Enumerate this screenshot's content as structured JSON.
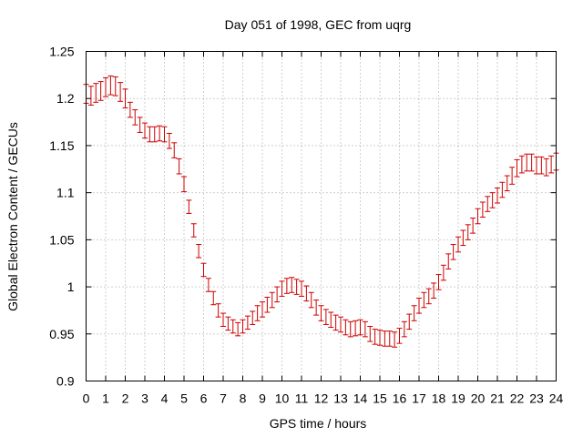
{
  "chart_data": {
    "type": "scatter",
    "title": "Day 051 of 1998, GEC from uqrg",
    "xlabel": "GPS time / hours",
    "ylabel": "Global Electron Content / GECUs",
    "xlim": [
      0,
      24
    ],
    "ylim": [
      0.9,
      1.25
    ],
    "x_ticks": [
      0,
      1,
      2,
      3,
      4,
      5,
      6,
      7,
      8,
      9,
      10,
      11,
      12,
      13,
      14,
      15,
      16,
      17,
      18,
      19,
      20,
      21,
      22,
      23,
      24
    ],
    "x_tick_labels": [
      "0",
      "1",
      "2",
      "3",
      "4",
      "5",
      "6",
      "7",
      "8",
      "9",
      "10",
      "11",
      "12",
      "13",
      "14",
      "15",
      "16",
      "17",
      "18",
      "19",
      "20",
      "21",
      "22",
      "23",
      "24"
    ],
    "y_ticks": [
      0.9,
      0.95,
      1.0,
      1.05,
      1.1,
      1.15,
      1.2,
      1.25
    ],
    "y_tick_labels": [
      "0.9",
      "0.95",
      "1",
      "1.05",
      "1.1",
      "1.15",
      "1.2",
      "1.25"
    ],
    "grid": true,
    "series": [
      {
        "name": "GEC",
        "color": "#cc0000",
        "marker": "errorbar",
        "x": [
          0,
          0.25,
          0.5,
          0.75,
          1,
          1.25,
          1.5,
          1.75,
          2,
          2.25,
          2.5,
          2.75,
          3,
          3.25,
          3.5,
          3.75,
          4,
          4.25,
          4.5,
          4.75,
          5,
          5.25,
          5.5,
          5.75,
          6,
          6.25,
          6.5,
          6.75,
          7,
          7.25,
          7.5,
          7.75,
          8,
          8.25,
          8.5,
          8.75,
          9,
          9.25,
          9.5,
          9.75,
          10,
          10.25,
          10.5,
          10.75,
          11,
          11.25,
          11.5,
          11.75,
          12,
          12.25,
          12.5,
          12.75,
          13,
          13.25,
          13.5,
          13.75,
          14,
          14.25,
          14.5,
          14.75,
          15,
          15.25,
          15.5,
          15.75,
          16,
          16.25,
          16.5,
          16.75,
          17,
          17.25,
          17.5,
          17.75,
          18,
          18.25,
          18.5,
          18.75,
          19,
          19.25,
          19.5,
          19.75,
          20,
          20.25,
          20.5,
          20.75,
          21,
          21.25,
          21.5,
          21.75,
          22,
          22.25,
          22.5,
          22.75,
          23,
          23.25,
          23.5,
          23.75,
          24
        ],
        "y": [
          1.205,
          1.203,
          1.206,
          1.208,
          1.212,
          1.214,
          1.213,
          1.207,
          1.2,
          1.188,
          1.18,
          1.172,
          1.166,
          1.162,
          1.162,
          1.163,
          1.162,
          1.155,
          1.145,
          1.128,
          1.109,
          1.085,
          1.06,
          1.038,
          1.018,
          1.002,
          0.988,
          0.975,
          0.965,
          0.961,
          0.958,
          0.955,
          0.958,
          0.962,
          0.967,
          0.972,
          0.976,
          0.981,
          0.986,
          0.992,
          0.998,
          1.001,
          1.002,
          1.0,
          0.998,
          0.993,
          0.986,
          0.978,
          0.972,
          0.968,
          0.965,
          0.962,
          0.96,
          0.957,
          0.955,
          0.956,
          0.957,
          0.955,
          0.95,
          0.947,
          0.946,
          0.945,
          0.945,
          0.944,
          0.948,
          0.955,
          0.963,
          0.972,
          0.98,
          0.986,
          0.99,
          0.996,
          1.005,
          1.015,
          1.027,
          1.037,
          1.045,
          1.052,
          1.058,
          1.065,
          1.075,
          1.082,
          1.088,
          1.092,
          1.097,
          1.103,
          1.11,
          1.118,
          1.126,
          1.13,
          1.132,
          1.132,
          1.129,
          1.129,
          1.127,
          1.13,
          1.133
        ],
        "err": [
          0.01,
          0.01,
          0.01,
          0.01,
          0.01,
          0.01,
          0.01,
          0.01,
          0.01,
          0.008,
          0.008,
          0.008,
          0.008,
          0.008,
          0.008,
          0.008,
          0.008,
          0.008,
          0.008,
          0.008,
          0.008,
          0.007,
          0.007,
          0.007,
          0.007,
          0.007,
          0.007,
          0.007,
          0.007,
          0.007,
          0.007,
          0.007,
          0.007,
          0.007,
          0.007,
          0.008,
          0.008,
          0.008,
          0.008,
          0.008,
          0.008,
          0.008,
          0.008,
          0.008,
          0.008,
          0.008,
          0.008,
          0.008,
          0.008,
          0.008,
          0.008,
          0.008,
          0.008,
          0.008,
          0.008,
          0.008,
          0.008,
          0.008,
          0.008,
          0.008,
          0.008,
          0.008,
          0.008,
          0.008,
          0.008,
          0.008,
          0.008,
          0.008,
          0.008,
          0.008,
          0.008,
          0.008,
          0.008,
          0.008,
          0.008,
          0.008,
          0.008,
          0.008,
          0.008,
          0.008,
          0.008,
          0.008,
          0.008,
          0.008,
          0.008,
          0.008,
          0.008,
          0.009,
          0.009,
          0.009,
          0.009,
          0.009,
          0.009,
          0.009,
          0.009,
          0.009,
          0.009
        ]
      }
    ]
  }
}
